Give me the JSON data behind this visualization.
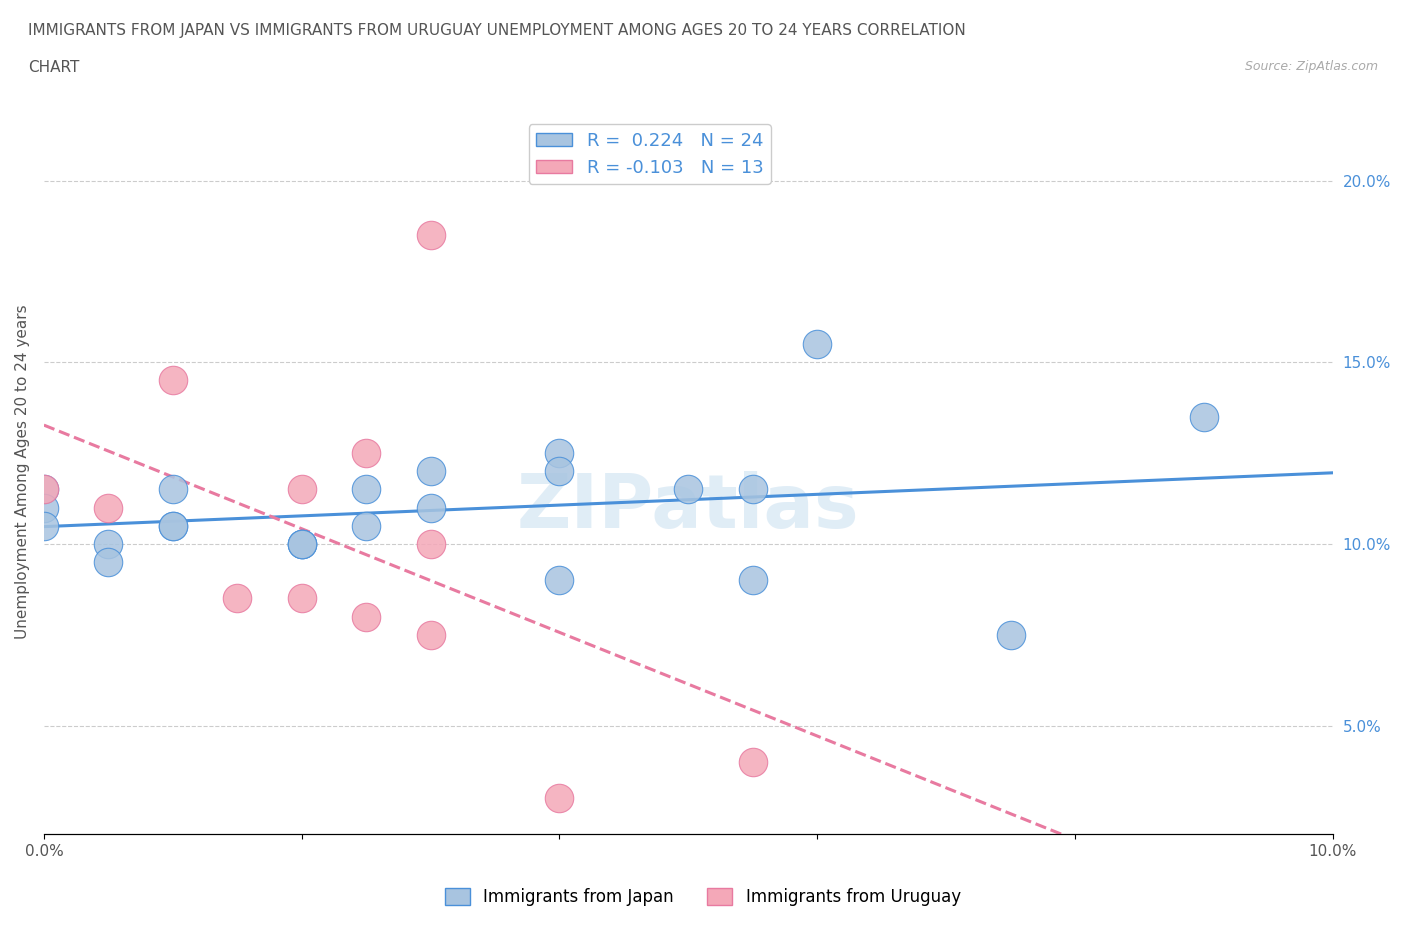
{
  "title_line1": "IMMIGRANTS FROM JAPAN VS IMMIGRANTS FROM URUGUAY UNEMPLOYMENT AMONG AGES 20 TO 24 YEARS CORRELATION",
  "title_line2": "CHART",
  "source_text": "Source: ZipAtlas.com",
  "ylabel": "Unemployment Among Ages 20 to 24 years",
  "xlim": [
    0.0,
    0.1
  ],
  "ylim": [
    0.02,
    0.22
  ],
  "legend_r_japan": "R =  0.224",
  "legend_n_japan": "N = 24",
  "legend_r_uruguay": "R = -0.103",
  "legend_n_uruguay": "N = 13",
  "color_japan": "#a8c4e0",
  "color_uruguay": "#f4a8b8",
  "color_japan_line": "#4a90d9",
  "color_uruguay_line": "#e87aa0",
  "watermark": "ZIPatlas",
  "japan_x": [
    0.0,
    0.0,
    0.0,
    0.005,
    0.005,
    0.01,
    0.01,
    0.01,
    0.02,
    0.02,
    0.02,
    0.025,
    0.025,
    0.03,
    0.03,
    0.04,
    0.04,
    0.04,
    0.05,
    0.055,
    0.055,
    0.06,
    0.075,
    0.09
  ],
  "japan_y": [
    0.115,
    0.11,
    0.105,
    0.1,
    0.095,
    0.115,
    0.105,
    0.105,
    0.1,
    0.1,
    0.1,
    0.115,
    0.105,
    0.12,
    0.11,
    0.125,
    0.12,
    0.09,
    0.115,
    0.115,
    0.09,
    0.155,
    0.075,
    0.135
  ],
  "uruguay_x": [
    0.0,
    0.005,
    0.01,
    0.015,
    0.02,
    0.02,
    0.025,
    0.025,
    0.03,
    0.03,
    0.03,
    0.04,
    0.055
  ],
  "uruguay_y": [
    0.115,
    0.11,
    0.145,
    0.085,
    0.115,
    0.085,
    0.125,
    0.08,
    0.185,
    0.1,
    0.075,
    0.03,
    0.04
  ]
}
